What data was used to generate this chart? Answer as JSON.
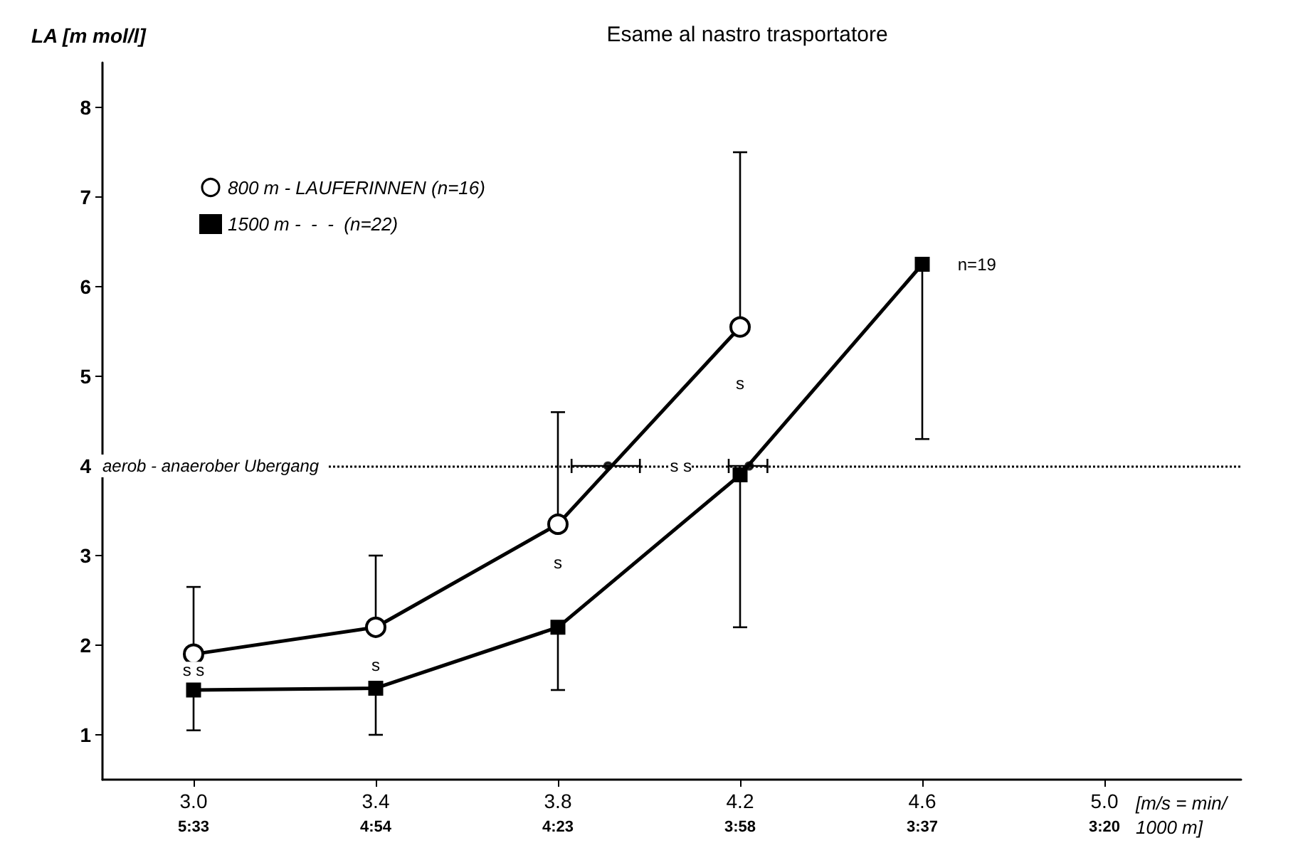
{
  "chart_data": {
    "type": "line",
    "title": "Esame al nastro trasportatore",
    "ylabel": "LA [m mol/l]",
    "xlabel": "[m/s = min/1000 m]",
    "xlim": [
      2.8,
      5.3
    ],
    "ylim": [
      0.5,
      8.5
    ],
    "xticks": [
      {
        "value": 3.0,
        "label": "3.0"
      },
      {
        "value": 3.4,
        "label": "3.4"
      },
      {
        "value": 3.8,
        "label": "3.8"
      },
      {
        "value": 4.2,
        "label": "4.2"
      },
      {
        "value": 4.6,
        "label": "4.6"
      },
      {
        "value": 5.0,
        "label": "5.0"
      }
    ],
    "yticks": [
      1,
      2,
      3,
      4,
      5,
      6,
      7,
      8
    ],
    "series": [
      {
        "name": "800 m - LAUFERINNEN (n=16)",
        "color": "#000000",
        "marker": "circle",
        "x": [
          3.0,
          3.4,
          3.8,
          4.2
        ],
        "values": [
          1.9,
          2.2,
          3.35,
          5.55
        ],
        "errors": [
          [
            1.9,
            2.65
          ],
          [
            2.2,
            3.0
          ],
          [
            3.35,
            4.6
          ],
          [
            5.55,
            7.5
          ]
        ]
      },
      {
        "name": "1500 m -  -  -  (n=22)",
        "color": "#000000",
        "marker": "square",
        "x": [
          3.0,
          3.4,
          3.8,
          4.2,
          4.6
        ],
        "values": [
          1.5,
          1.52,
          2.2,
          3.9,
          6.25
        ],
        "errors": [
          [
            1.05,
            1.5
          ],
          [
            1.0,
            1.52
          ],
          [
            1.5,
            2.2
          ],
          [
            2.2,
            3.9
          ],
          [
            4.3,
            6.25
          ]
        ]
      },
      {
        "type": "scatter",
        "color": "#000000",
        "marker": "circle",
        "x": [
          3.91,
          4.22
        ],
        "values": [
          4,
          4
        ],
        "xerrors": [
          [
            3.83,
            3.98
          ],
          [
            4.175,
            4.26
          ]
        ]
      }
    ],
    "ref_lines": [
      {
        "axis": "y",
        "value": 4,
        "label": "aerob - anaerober Ubergang",
        "line_style": "dotted",
        "color": "#000000"
      }
    ],
    "annotations": [
      {
        "text": "s s",
        "x": 3.0,
        "y": 1.72
      },
      {
        "text": "s",
        "x": 3.4,
        "y": 1.78
      },
      {
        "text": "s",
        "x": 3.8,
        "y": 2.92
      },
      {
        "text": "s",
        "x": 4.2,
        "y": 4.92
      },
      {
        "text": "s s",
        "x": 4.07,
        "y": 4.0
      },
      {
        "text": "n=19",
        "x": 4.72,
        "y": 6.25
      },
      "5:33",
      "4:54",
      "4:23",
      "3:58",
      "3:37",
      "3:20"
    ],
    "legend": "top left",
    "grid": false,
    "line_style": "solid"
  }
}
